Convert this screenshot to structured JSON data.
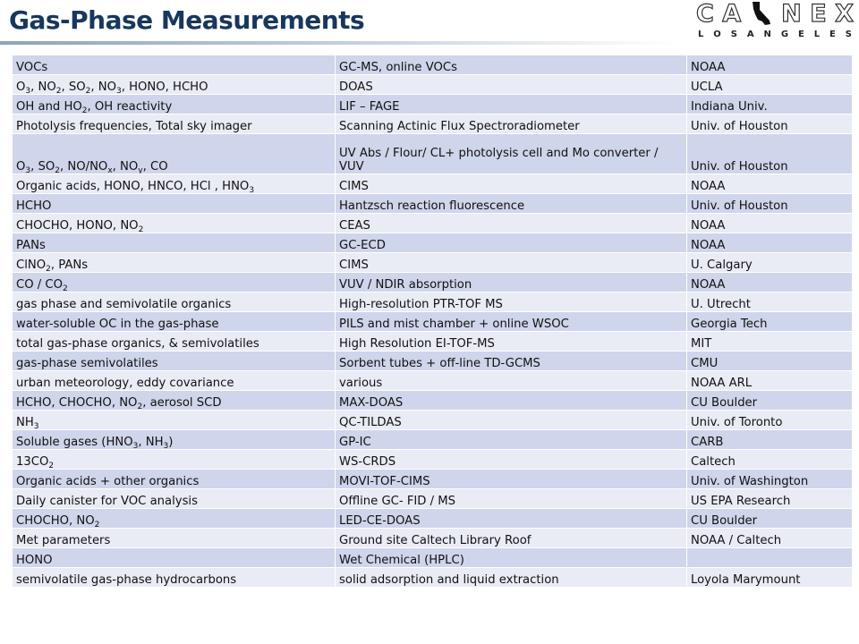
{
  "header": {
    "title": "Gas-Phase Measurements",
    "logo": {
      "letters": [
        "C",
        "A",
        "N",
        "E",
        "X"
      ],
      "subtitle_letters": [
        "L",
        "O",
        "S",
        "A",
        "N",
        "G",
        "E",
        "L",
        "E",
        "S"
      ],
      "subtitle": "LOS ANGELES",
      "icon": "california-state-icon"
    }
  },
  "colors": {
    "title": "#17375e",
    "row_odd": "#cfd5ea",
    "row_even": "#e9ebf5"
  },
  "table": {
    "rows": [
      {
        "species": [
          {
            "t": "VOCs"
          }
        ],
        "method": "GC-MS, online VOCs",
        "group": "NOAA"
      },
      {
        "species": [
          {
            "t": "O"
          },
          {
            "s": "3"
          },
          {
            "t": ", NO"
          },
          {
            "s": "2"
          },
          {
            "t": ", SO"
          },
          {
            "s": "2"
          },
          {
            "t": ", NO"
          },
          {
            "s": "3"
          },
          {
            "t": ", HONO, HCHO"
          }
        ],
        "method": "DOAS",
        "group": "UCLA"
      },
      {
        "species": [
          {
            "t": "OH and HO"
          },
          {
            "s": "2"
          },
          {
            "t": ", OH reactivity"
          }
        ],
        "method": "LIF – FAGE",
        "group": "Indiana Univ."
      },
      {
        "species": [
          {
            "t": "Photolysis frequencies, Total sky imager"
          }
        ],
        "method": "Scanning Actinic Flux Spectroradiometer",
        "group": "Univ. of Houston"
      },
      {
        "species": [
          {
            "t": "O"
          },
          {
            "s": "3"
          },
          {
            "t": ", SO"
          },
          {
            "s": "2"
          },
          {
            "t": ", NO/NO"
          },
          {
            "s": "x"
          },
          {
            "t": ", NO"
          },
          {
            "s": "y"
          },
          {
            "t": ", CO"
          }
        ],
        "method": "UV Abs / Flour/ CL+ photolysis cell and Mo converter / VUV",
        "group": "Univ. of Houston",
        "tall": true
      },
      {
        "species": [
          {
            "t": "Organic acids, HONO, HNCO, HCl , HNO"
          },
          {
            "s": "3"
          }
        ],
        "method": "CIMS",
        "group": "NOAA"
      },
      {
        "species": [
          {
            "t": "HCHO"
          }
        ],
        "method": "Hantzsch reaction fluorescence",
        "group": "Univ. of Houston"
      },
      {
        "species": [
          {
            "t": "CHOCHO, HONO, NO"
          },
          {
            "s": "2"
          }
        ],
        "method": "CEAS",
        "group": "NOAA"
      },
      {
        "species": [
          {
            "t": "PANs"
          }
        ],
        "method": "GC-ECD",
        "group": "NOAA"
      },
      {
        "species": [
          {
            "t": "ClNO"
          },
          {
            "s": "2"
          },
          {
            "t": ", PANs"
          }
        ],
        "method": "CIMS",
        "group": "U. Calgary"
      },
      {
        "species": [
          {
            "t": "CO / CO"
          },
          {
            "s": "2"
          }
        ],
        "method": "VUV / NDIR absorption",
        "group": "NOAA"
      },
      {
        "species": [
          {
            "t": "gas phase and semivolatile organics"
          }
        ],
        "method": "High-resolution PTR-TOF MS",
        "group": "U. Utrecht"
      },
      {
        "species": [
          {
            "t": "water-soluble OC in the gas-phase"
          }
        ],
        "method": "PILS and mist chamber + online WSOC",
        "group": "Georgia Tech"
      },
      {
        "species": [
          {
            "t": "total gas-phase organics, & semivolatiles"
          }
        ],
        "method": "High Resolution EI-TOF-MS",
        "group": "MIT"
      },
      {
        "species": [
          {
            "t": "gas-phase semivolatiles"
          }
        ],
        "method": "Sorbent tubes + off-line TD-GCMS",
        "group": "CMU"
      },
      {
        "species": [
          {
            "t": "urban meteorology, eddy covariance"
          }
        ],
        "method": "various",
        "group": "NOAA ARL"
      },
      {
        "species": [
          {
            "t": "HCHO, CHOCHO, NO"
          },
          {
            "s": "2"
          },
          {
            "t": ", aerosol SCD"
          }
        ],
        "method": "MAX-DOAS",
        "group": "CU Boulder"
      },
      {
        "species": [
          {
            "t": "NH"
          },
          {
            "s": "3"
          }
        ],
        "method": "QC-TILDAS",
        "group": "Univ. of Toronto"
      },
      {
        "species": [
          {
            "t": "Soluble gases (HNO"
          },
          {
            "s": "3"
          },
          {
            "t": ", NH"
          },
          {
            "s": "3"
          },
          {
            "t": ")"
          }
        ],
        "method": "GP-IC",
        "group": "CARB"
      },
      {
        "species": [
          {
            "t": "13CO"
          },
          {
            "s": "2"
          }
        ],
        "method": "WS-CRDS",
        "group": "Caltech"
      },
      {
        "species": [
          {
            "t": "Organic acids + other organics"
          }
        ],
        "method": "MOVI-TOF-CIMS",
        "group": "Univ. of Washington"
      },
      {
        "species": [
          {
            "t": "Daily canister for VOC analysis"
          }
        ],
        "method": "Offline GC- FID / MS",
        "group": "US EPA Research"
      },
      {
        "species": [
          {
            "t": "CHOCHO, NO"
          },
          {
            "s": "2"
          }
        ],
        "method": "LED-CE-DOAS",
        "group": "CU Boulder"
      },
      {
        "species": [
          {
            "t": "Met parameters"
          }
        ],
        "method": "Ground site Caltech Library Roof",
        "group": "NOAA / Caltech"
      },
      {
        "species": [
          {
            "t": "HONO"
          }
        ],
        "method": "Wet Chemical (HPLC)",
        "group": ""
      },
      {
        "species": [
          {
            "t": "semivolatile gas-phase hydrocarbons"
          }
        ],
        "method": "solid adsorption and liquid extraction",
        "group": "Loyola Marymount"
      }
    ]
  }
}
